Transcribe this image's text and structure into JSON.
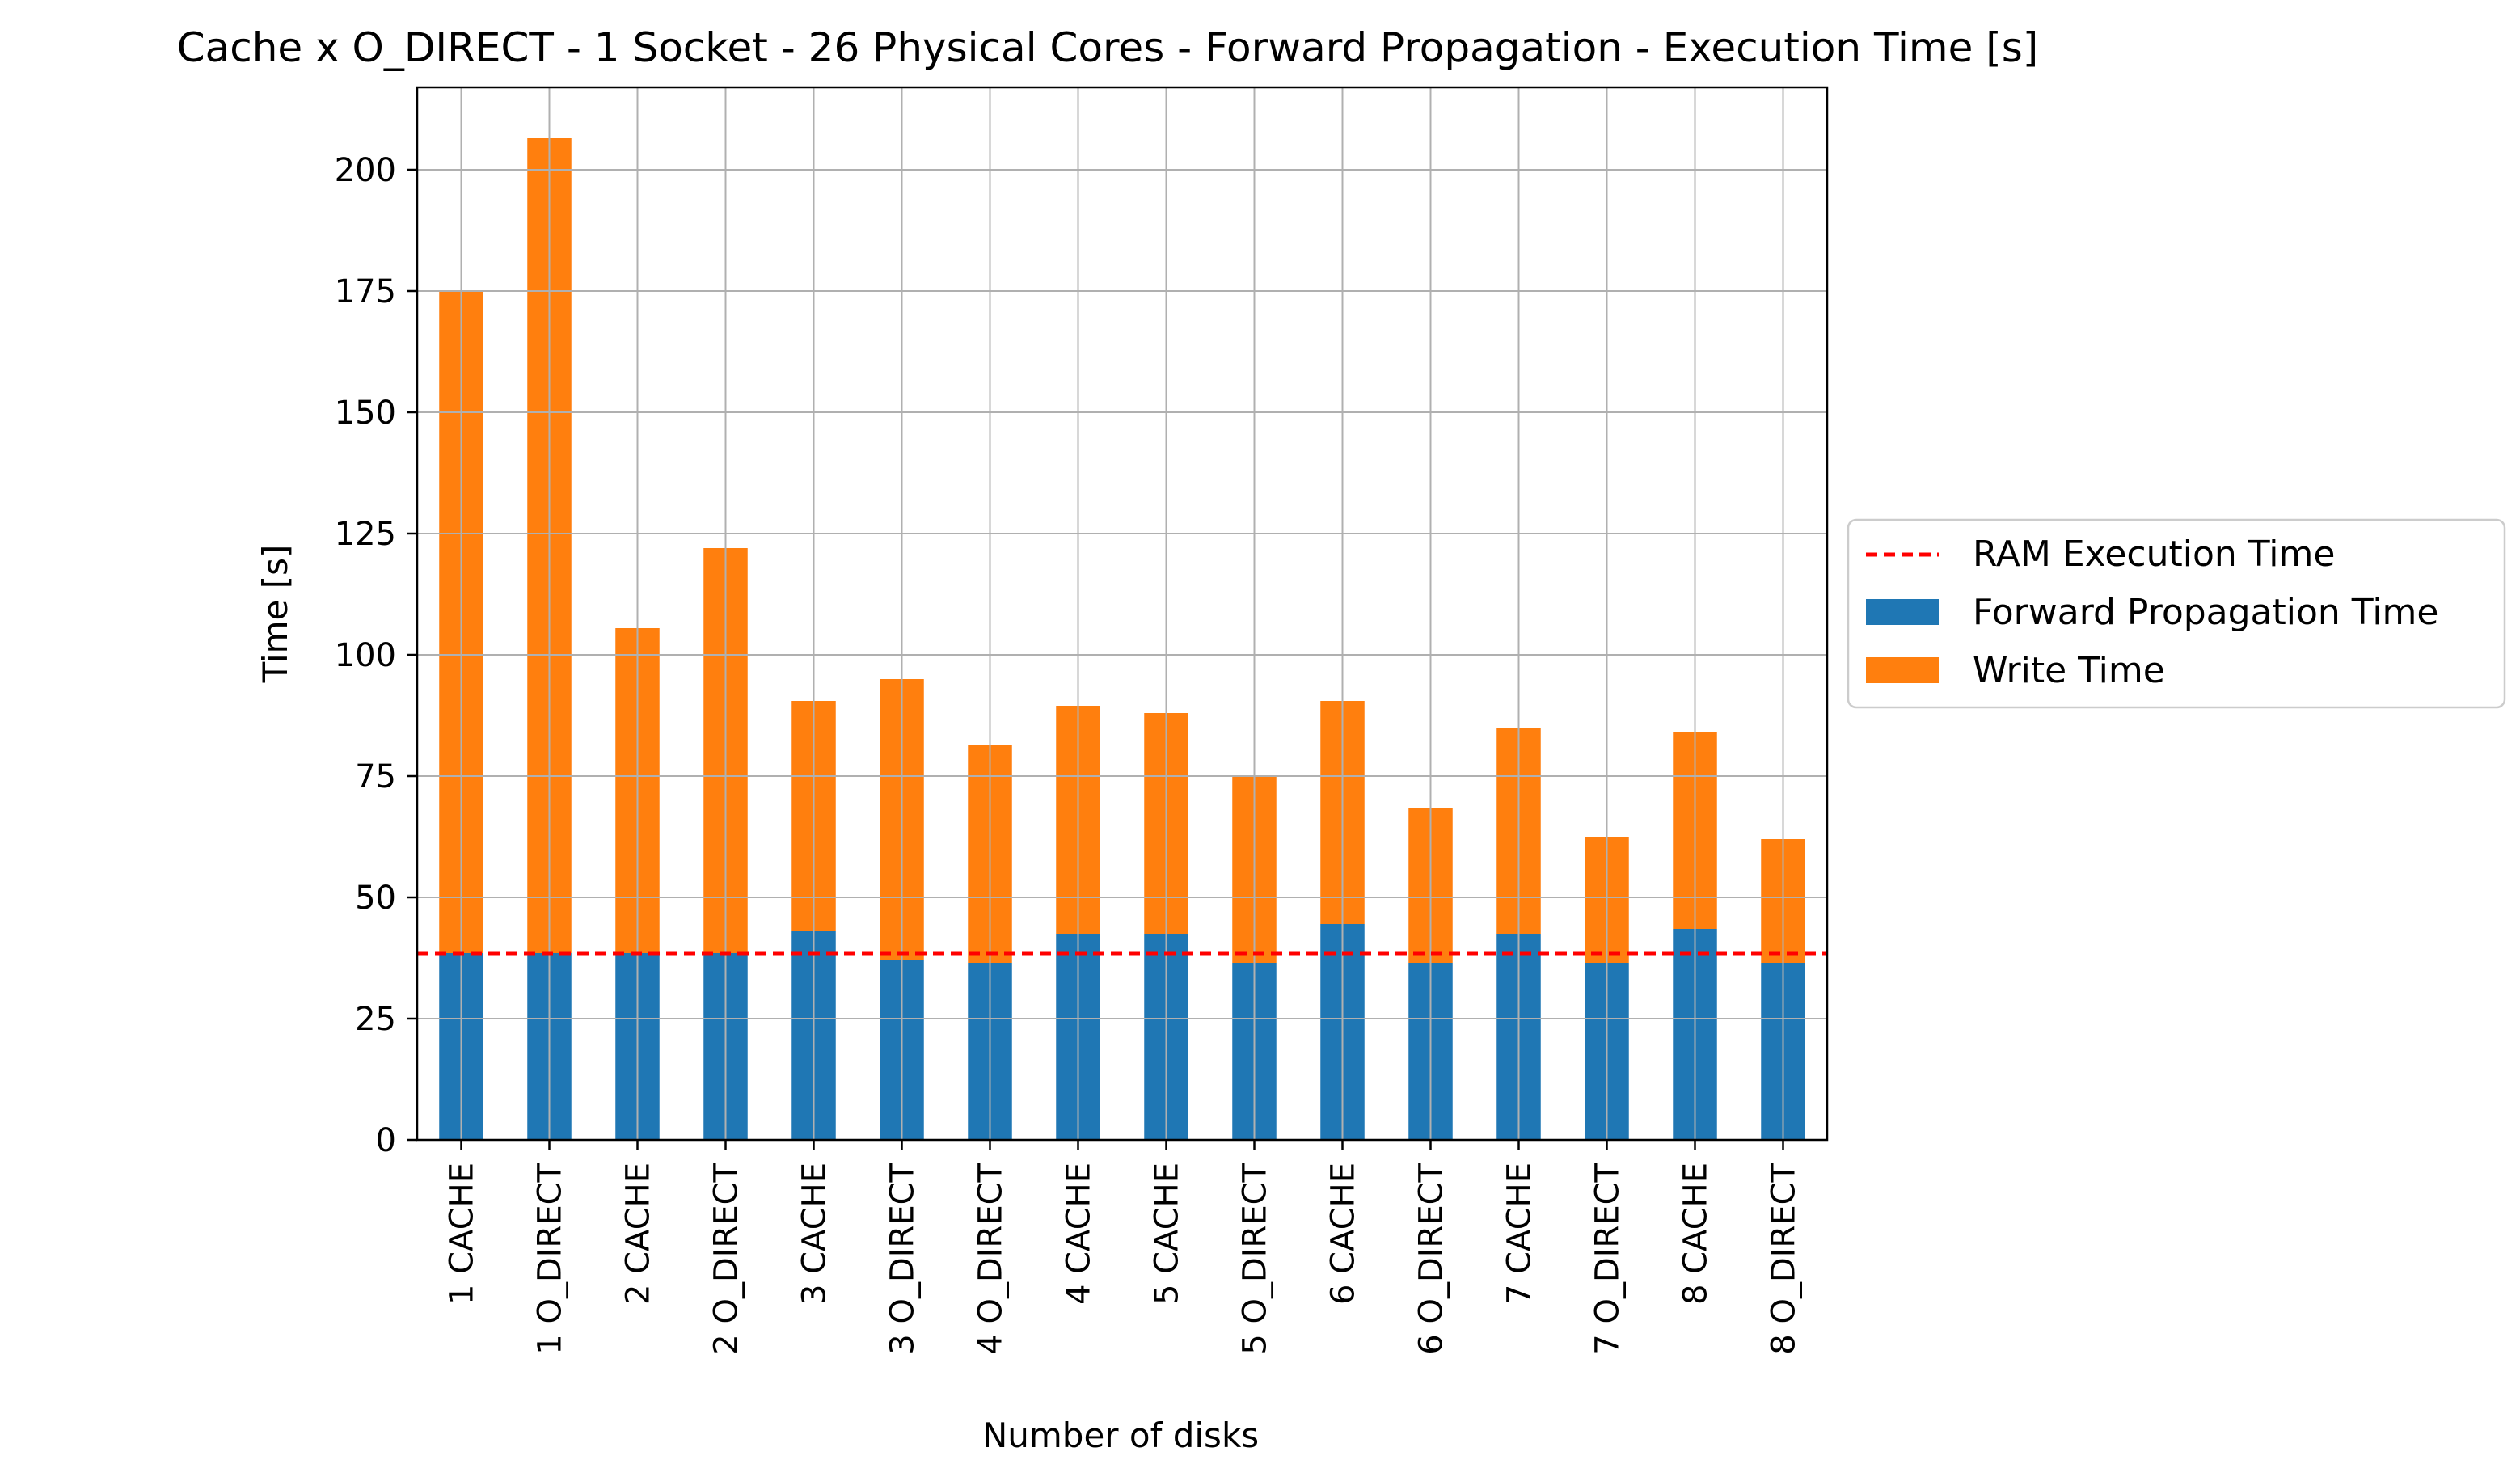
{
  "chart_data": {
    "type": "bar",
    "stacked": true,
    "title": "Cache x O_DIRECT - 1 Socket - 26 Physical Cores - Forward Propagation - Execution Time [s]",
    "xlabel": "Number of disks",
    "ylabel": "Time [s]",
    "ylim": [
      0,
      217
    ],
    "yticks": [
      0,
      25,
      50,
      75,
      100,
      125,
      150,
      175,
      200
    ],
    "grid": true,
    "legend_position": "right",
    "categories": [
      "1 CACHE",
      "1 O_DIRECT",
      "2 CACHE",
      "2 O_DIRECT",
      "3 CACHE",
      "3 O_DIRECT",
      "4 O_DIRECT",
      "4 CACHE",
      "5 CACHE",
      "5 O_DIRECT",
      "6 CACHE",
      "6 O_DIRECT",
      "7 CACHE",
      "7 O_DIRECT",
      "8 CACHE",
      "8 O_DIRECT"
    ],
    "series": [
      {
        "name": "Forward Propagation Time",
        "color": "#1f77b4",
        "values": [
          38.5,
          38.5,
          38.5,
          38.5,
          43,
          37,
          36.5,
          42.5,
          42.5,
          36.5,
          44.5,
          36.5,
          42.5,
          36.5,
          43.5,
          36.5
        ]
      },
      {
        "name": "Write Time",
        "color": "#ff7f0e",
        "values": [
          136.5,
          168,
          67,
          83.5,
          47.5,
          58,
          45,
          47,
          45.5,
          38.5,
          46,
          32,
          42.5,
          26,
          40.5,
          25.5
        ]
      }
    ],
    "reference_line": {
      "name": "RAM Execution Time",
      "value": 38.5,
      "color": "#ff0000",
      "style": "dashed"
    }
  }
}
